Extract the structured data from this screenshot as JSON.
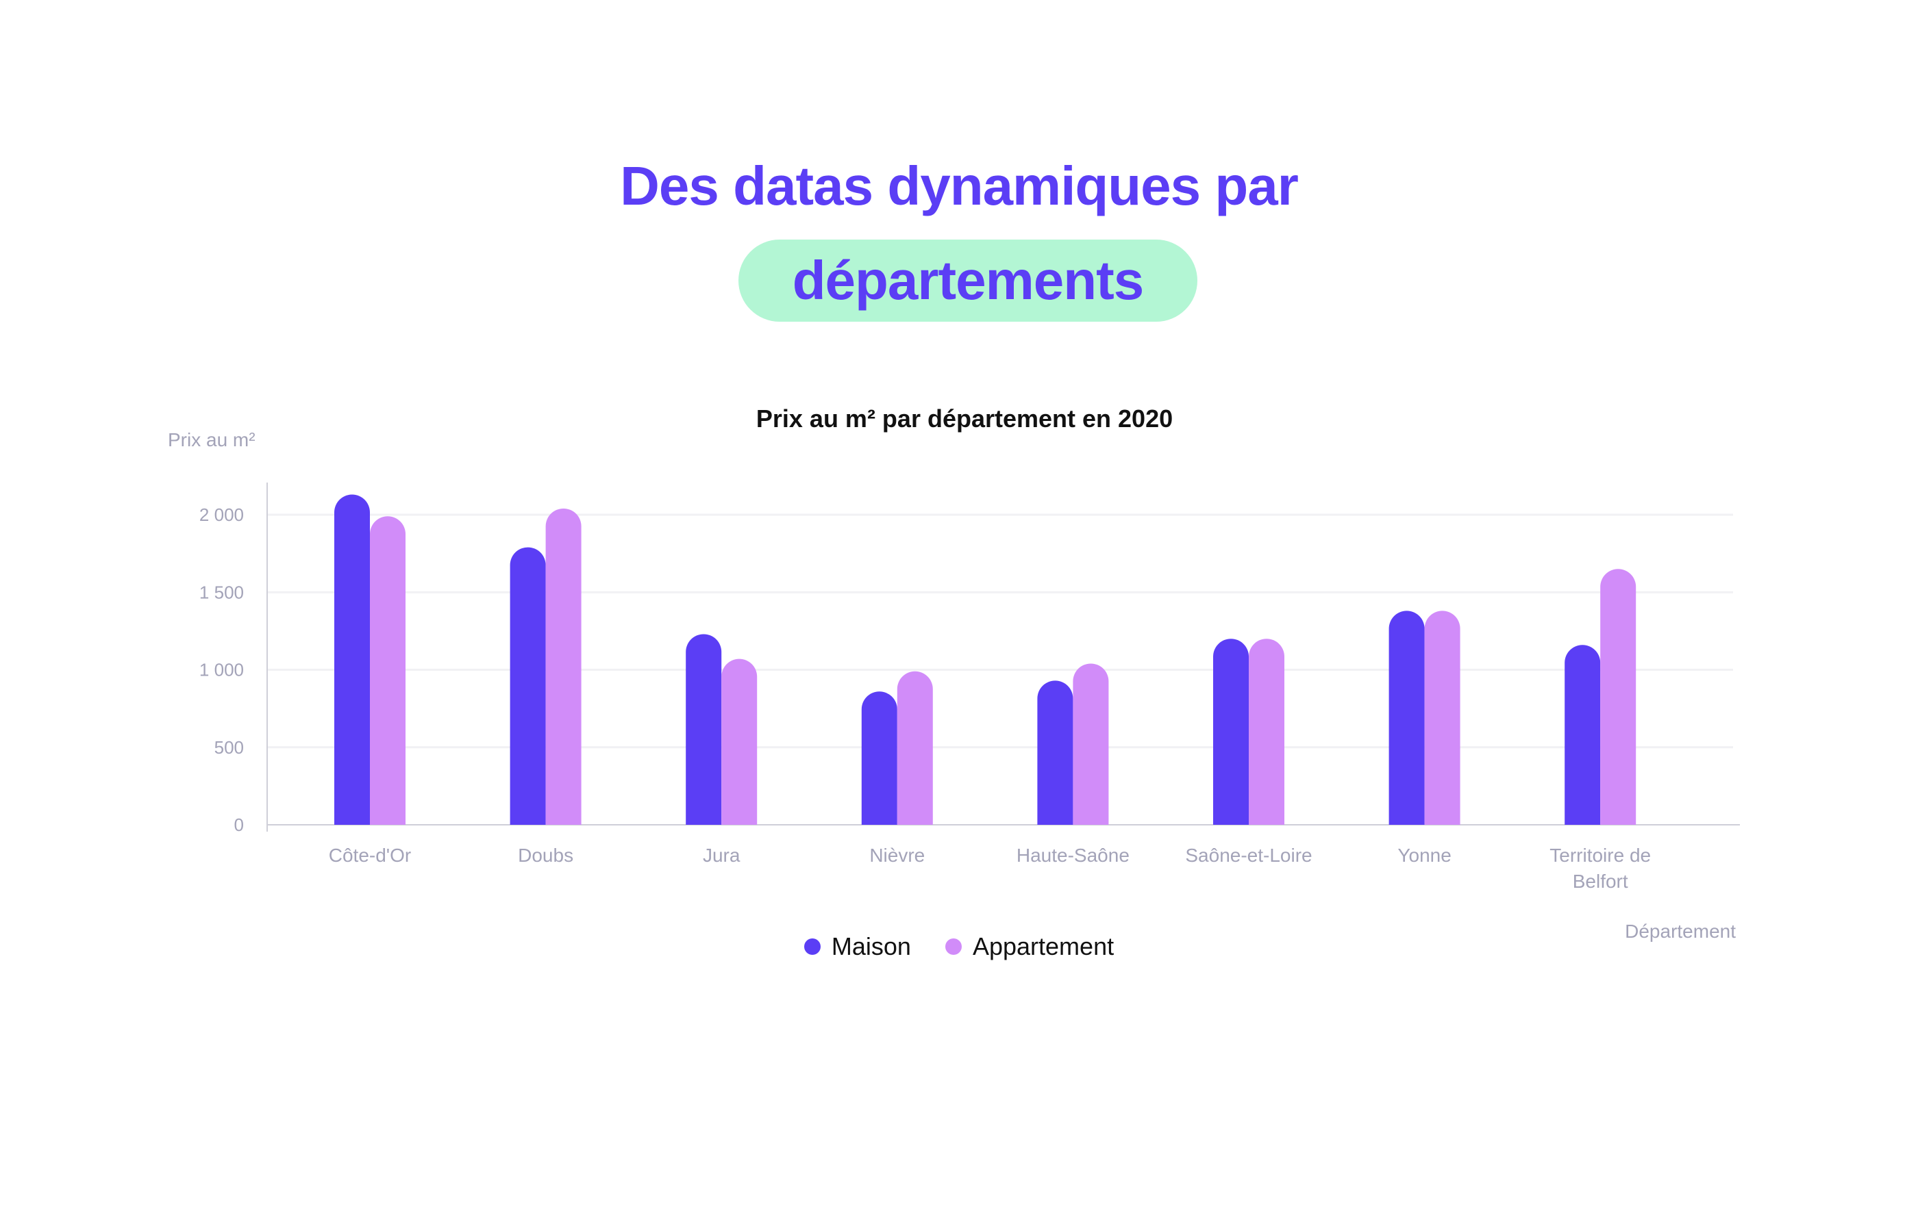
{
  "hero": {
    "line1": "Des datas dynamiques par",
    "line2": "départements"
  },
  "colors": {
    "maison": "#5b3ef5",
    "appartement": "#d18cf9",
    "pill": "#b3f6d4",
    "heading": "#5b3ef5",
    "grid": "#f1f1f4",
    "axis": "#cfcfd8",
    "muted_text": "#a3a3b8"
  },
  "chart_data": {
    "type": "bar",
    "title": "Prix au m² par département en 2020",
    "ylabel": "Prix au m²",
    "xlabel": "Département",
    "categories": [
      "Côte-d'Or",
      "Doubs",
      "Jura",
      "Nièvre",
      "Haute-Saône",
      "Saône-et-Loire",
      "Yonne",
      "Territoire de Belfort"
    ],
    "series": [
      {
        "name": "Maison",
        "values": [
          2130,
          1790,
          1230,
          860,
          930,
          1200,
          1380,
          1160
        ]
      },
      {
        "name": "Appartement",
        "values": [
          1990,
          2040,
          1070,
          990,
          1040,
          1200,
          1380,
          1650
        ]
      }
    ],
    "yticks": [
      {
        "value": 0,
        "label": "0"
      },
      {
        "value": 500,
        "label": "500"
      },
      {
        "value": 1000,
        "label": "1 000"
      },
      {
        "value": 1500,
        "label": "1 500"
      },
      {
        "value": 2000,
        "label": "2 000"
      }
    ],
    "ylim": [
      0,
      2200
    ],
    "grid": true,
    "legend_position": "bottom-center"
  },
  "legend": {
    "items": [
      {
        "label": "Maison"
      },
      {
        "label": "Appartement"
      }
    ]
  }
}
